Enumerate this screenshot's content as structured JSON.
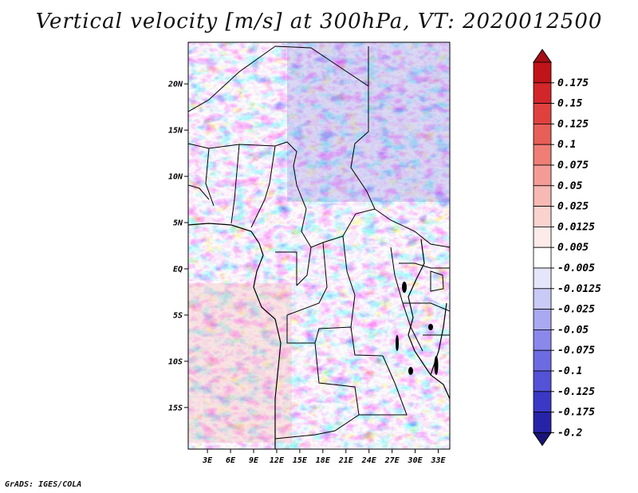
{
  "title": "Vertical velocity [m/s] at 300hPa, VT: 2020012500",
  "credit": "GrADS: IGES/COLA",
  "map": {
    "lat_range": [
      -19.5,
      24.5
    ],
    "lon_range": [
      0.5,
      34.5
    ],
    "lat_ticks": [
      {
        "value": 20,
        "label": "20N"
      },
      {
        "value": 15,
        "label": "15N"
      },
      {
        "value": 10,
        "label": "10N"
      },
      {
        "value": 5,
        "label": "5N"
      },
      {
        "value": 0,
        "label": "EQ"
      },
      {
        "value": -5,
        "label": "5S"
      },
      {
        "value": -10,
        "label": "10S"
      },
      {
        "value": -15,
        "label": "15S"
      }
    ],
    "lon_ticks": [
      {
        "value": 3,
        "label": "3E"
      },
      {
        "value": 6,
        "label": "6E"
      },
      {
        "value": 9,
        "label": "9E"
      },
      {
        "value": 12,
        "label": "12E"
      },
      {
        "value": 15,
        "label": "15E"
      },
      {
        "value": 18,
        "label": "18E"
      },
      {
        "value": 21,
        "label": "21E"
      },
      {
        "value": 24,
        "label": "24E"
      },
      {
        "value": 27,
        "label": "27E"
      },
      {
        "value": 30,
        "label": "30E"
      },
      {
        "value": 33,
        "label": "33E"
      }
    ]
  },
  "colorbar": {
    "top_color": "#a50f15",
    "bottom_color": "#1a1478",
    "levels": [
      {
        "label": "0.175",
        "color": "#c01418"
      },
      {
        "label": "0.15",
        "color": "#d2262a"
      },
      {
        "label": "0.125",
        "color": "#e0413f"
      },
      {
        "label": "0.1",
        "color": "#e85e58"
      },
      {
        "label": "0.075",
        "color": "#ee7e76"
      },
      {
        "label": "0.05",
        "color": "#f39c95"
      },
      {
        "label": "0.025",
        "color": "#f7b9b3"
      },
      {
        "label": "0.0125",
        "color": "#fad3cf"
      },
      {
        "label": "0.005",
        "color": "#fdebe9"
      },
      {
        "label": "-0.005",
        "color": "#ffffff"
      },
      {
        "label": "-0.0125",
        "color": "#e6e6fb"
      },
      {
        "label": "-0.025",
        "color": "#cacaf7"
      },
      {
        "label": "-0.05",
        "color": "#a9a9f2"
      },
      {
        "label": "-0.075",
        "color": "#8a88eb"
      },
      {
        "label": "-0.1",
        "color": "#6d6be2"
      },
      {
        "label": "-0.125",
        "color": "#5452d6"
      },
      {
        "label": "-0.175",
        "color": "#3b38c6"
      },
      {
        "label": "-0.2",
        "color": "#2723a8"
      }
    ]
  }
}
